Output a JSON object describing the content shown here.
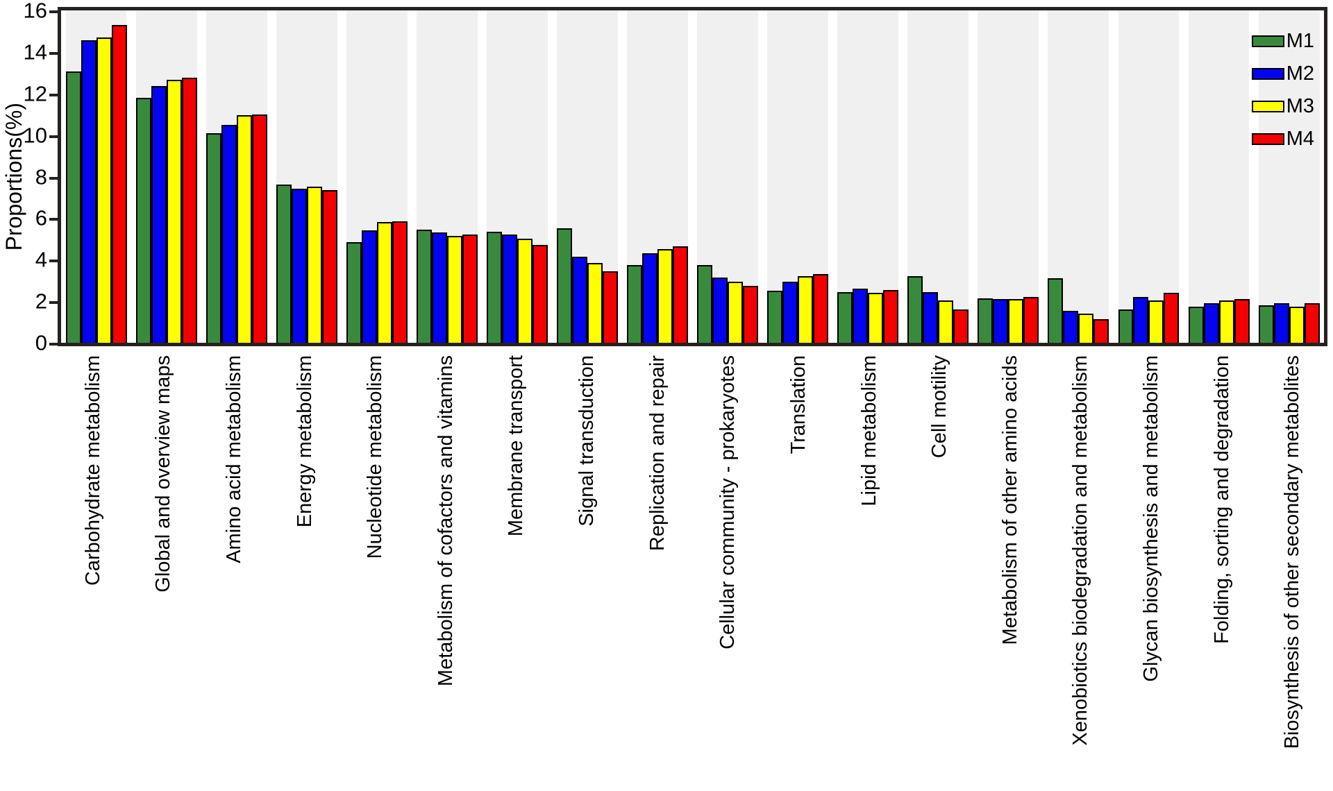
{
  "chart_data": {
    "type": "bar",
    "title": "",
    "xlabel": "",
    "ylabel": "Proportions(%)",
    "ylim": [
      0,
      16
    ],
    "yticks": [
      0,
      2,
      4,
      6,
      8,
      10,
      12,
      14,
      16
    ],
    "legend_position": "top-right",
    "background_bands": "alternating light-gray vertical band behind each category group",
    "categories": [
      "Carbohydrate metabolism",
      "Global and overview maps",
      "Amino acid metabolism",
      "Energy metabolism",
      "Nucleotide metabolism",
      "Metabolism of cofactors and vitamins",
      "Membrane transport",
      "Signal transduction",
      "Replication and repair",
      "Cellular community - prokaryotes",
      "Translation",
      "Lipid metabolism",
      "Cell motility",
      "Metabolism of other amino acids",
      "Xenobiotics biodegradation and metabolism",
      "Glycan biosynthesis and metabolism",
      "Folding, sorting and degradation",
      "Biosynthesis of other secondary metabolites"
    ],
    "series": [
      {
        "name": "M1",
        "color": "#3a8a3e",
        "values": [
          13.05,
          11.8,
          10.1,
          7.6,
          4.85,
          5.45,
          5.35,
          5.5,
          3.75,
          3.75,
          2.5,
          2.45,
          3.2,
          2.15,
          3.1,
          1.6,
          1.75,
          1.8
        ]
      },
      {
        "name": "M2",
        "color": "#0404ee",
        "values": [
          14.55,
          12.35,
          10.5,
          7.4,
          5.4,
          5.3,
          5.2,
          4.15,
          4.3,
          3.15,
          2.95,
          2.6,
          2.45,
          2.1,
          1.55,
          2.2,
          1.9,
          1.9
        ]
      },
      {
        "name": "M3",
        "color": "#ffff00",
        "values": [
          14.7,
          12.65,
          10.95,
          7.5,
          5.8,
          5.15,
          5.0,
          3.85,
          4.5,
          2.95,
          3.2,
          2.4,
          2.05,
          2.1,
          1.4,
          2.05,
          2.05,
          1.75
        ]
      },
      {
        "name": "M4",
        "color": "#f50000",
        "values": [
          15.3,
          12.75,
          11.0,
          7.35,
          5.85,
          5.2,
          4.7,
          3.45,
          4.65,
          2.75,
          3.3,
          2.55,
          1.6,
          2.2,
          1.15,
          2.4,
          2.1,
          1.9
        ]
      }
    ]
  },
  "style_colors": {
    "frame": "#262220",
    "band": "#f0f0f0",
    "background": "#ffffff",
    "bar_outline": "#000000"
  }
}
